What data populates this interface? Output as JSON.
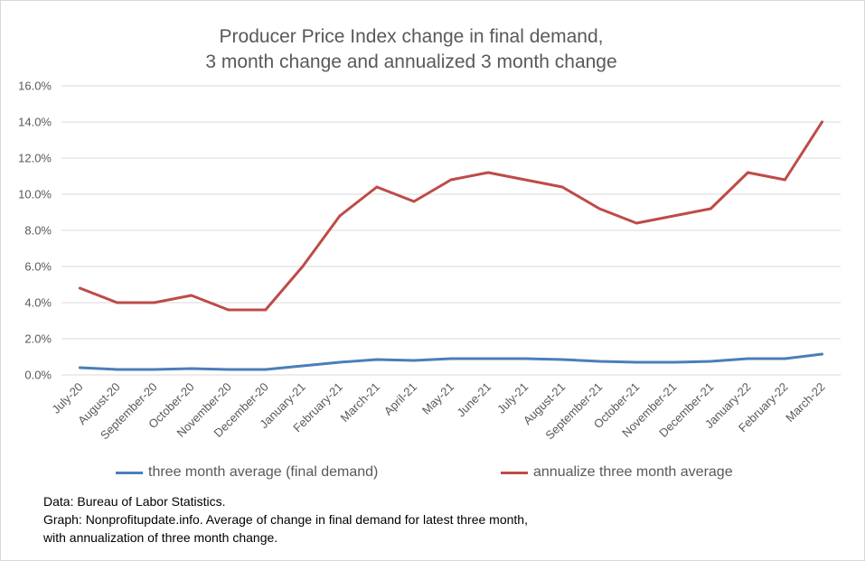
{
  "title_lines": [
    "Producer Price Index change in final demand,",
    "3 month change and annualized 3 month change"
  ],
  "chart_data": {
    "type": "line",
    "categories": [
      "July-20",
      "August-20",
      "September-20",
      "October-20",
      "November-20",
      "December-20",
      "January-21",
      "February-21",
      "March-21",
      "April-21",
      "May-21",
      "June-21",
      "July-21",
      "August-21",
      "September-21",
      "October-21",
      "November-21",
      "December-21",
      "January-22",
      "February-22",
      "March-22"
    ],
    "series": [
      {
        "name": "three month average (final demand)",
        "color": "#4a7ebb",
        "values": [
          0.4,
          0.3,
          0.3,
          0.35,
          0.3,
          0.3,
          0.5,
          0.7,
          0.85,
          0.8,
          0.9,
          0.9,
          0.9,
          0.85,
          0.75,
          0.7,
          0.7,
          0.75,
          0.9,
          0.9,
          1.15
        ]
      },
      {
        "name": "annualize three month average",
        "color": "#be4b48",
        "values": [
          4.8,
          4.0,
          4.0,
          4.4,
          3.6,
          3.6,
          6.0,
          8.8,
          10.4,
          9.6,
          10.8,
          11.2,
          10.8,
          10.4,
          9.2,
          8.4,
          8.8,
          9.2,
          11.2,
          10.8,
          14.0
        ]
      }
    ],
    "y_ticks": [
      "0.0%",
      "2.0%",
      "4.0%",
      "6.0%",
      "8.0%",
      "10.0%",
      "12.0%",
      "14.0%",
      "16.0%"
    ],
    "ylim": [
      0,
      16
    ],
    "grid": true,
    "legend_position": "bottom"
  },
  "notes": [
    "Data: Bureau of Labor Statistics.",
    "Graph:  Nonprofitupdate.info.  Average of change in final demand for latest three month,",
    "with annualization of three month change."
  ]
}
